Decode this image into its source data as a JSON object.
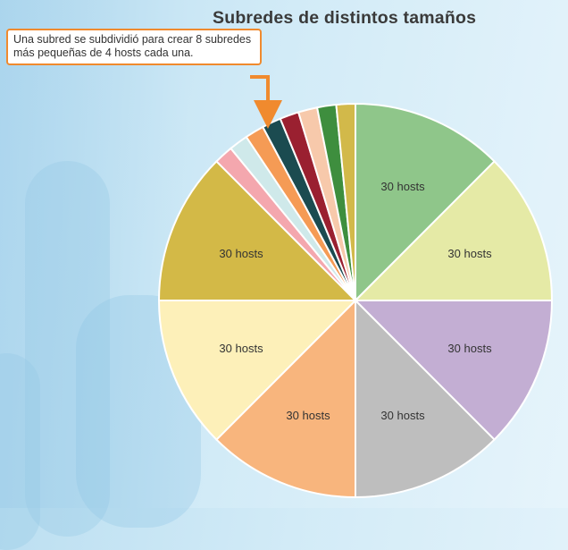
{
  "title": "Subredes de distintos tamaños",
  "callout": {
    "text": "Una subred se subdividió para crear 8 subredes más pequeñas de 4 hosts cada una.",
    "border_color": "#f08a2e"
  },
  "chart_data": {
    "type": "pie",
    "title": "Subredes de distintos tamaños",
    "start": "top, clockwise",
    "slices": [
      {
        "value": 32,
        "label": "30 hosts",
        "color": "#8fc68a"
      },
      {
        "value": 32,
        "label": "30 hosts",
        "color": "#e5eaa6"
      },
      {
        "value": 32,
        "label": "30 hosts",
        "color": "#c3aed3"
      },
      {
        "value": 32,
        "label": "30 hosts",
        "color": "#bebebe"
      },
      {
        "value": 32,
        "label": "30 hosts",
        "color": "#f8b57d"
      },
      {
        "value": 32,
        "label": "30 hosts",
        "color": "#fdf0b9"
      },
      {
        "value": 32,
        "label": "30 hosts",
        "color": "#d3b947"
      },
      {
        "value": 4,
        "label": "",
        "color": "#f4a7ae"
      },
      {
        "value": 4,
        "label": "",
        "color": "#cfe9ea"
      },
      {
        "value": 4,
        "label": "",
        "color": "#f59b55"
      },
      {
        "value": 4,
        "label": "",
        "color": "#1b4b50"
      },
      {
        "value": 4,
        "label": "",
        "color": "#9a2030"
      },
      {
        "value": 4,
        "label": "",
        "color": "#f7c9ab"
      },
      {
        "value": 4,
        "label": "",
        "color": "#3e8e3e"
      },
      {
        "value": 4,
        "label": "",
        "color": "#d2b94a"
      }
    ]
  }
}
